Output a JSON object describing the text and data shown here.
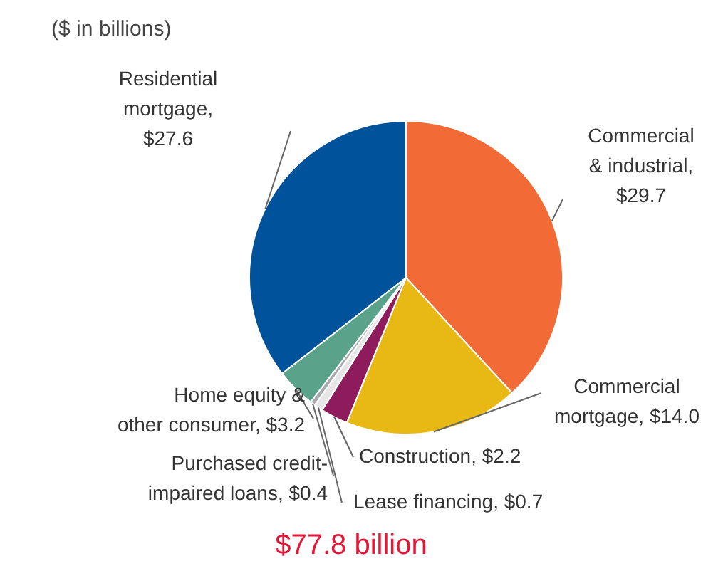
{
  "chart_data": {
    "type": "pie",
    "title": "$77.8 billion",
    "subtitle": "($ in billions)",
    "categories": [
      "Commercial & industrial, $29.7",
      "Commercial mortgage, $14.0",
      "Construction, $2.2",
      "Lease financing, $0.7",
      "Purchased credit-impaired loans, $0.4",
      "Home equity & other consumer, $3.2",
      "Residential mortgage, $27.6"
    ],
    "values": [
      29.7,
      14.0,
      2.2,
      0.7,
      0.4,
      3.2,
      27.6
    ],
    "colors": [
      "#f26a36",
      "#e8b914",
      "#8e1b5b",
      "#e6e6e6",
      "#a7a9ac",
      "#5aa38a",
      "#00539b"
    ],
    "legend": false
  }
}
